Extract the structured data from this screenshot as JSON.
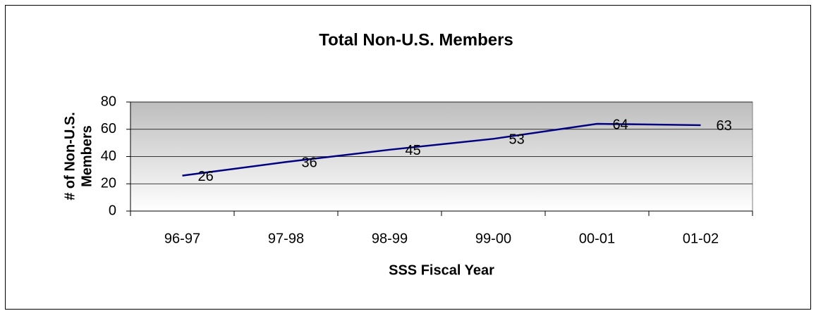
{
  "chart_data": {
    "type": "line",
    "title": "Total Non-U.S. Members",
    "xlabel": "SSS Fiscal Year",
    "ylabel": [
      "# of Non-U.S.",
      "Members"
    ],
    "categories": [
      "96-97",
      "97-98",
      "98-99",
      "99-00",
      "00-01",
      "01-02"
    ],
    "series": [
      {
        "name": "Total Non-U.S. Members",
        "color": "#000080",
        "values": [
          26,
          36,
          45,
          53,
          64,
          63
        ]
      }
    ],
    "ylim": [
      0,
      80
    ],
    "yticks": [
      0,
      20,
      40,
      60,
      80
    ],
    "grid": true
  }
}
